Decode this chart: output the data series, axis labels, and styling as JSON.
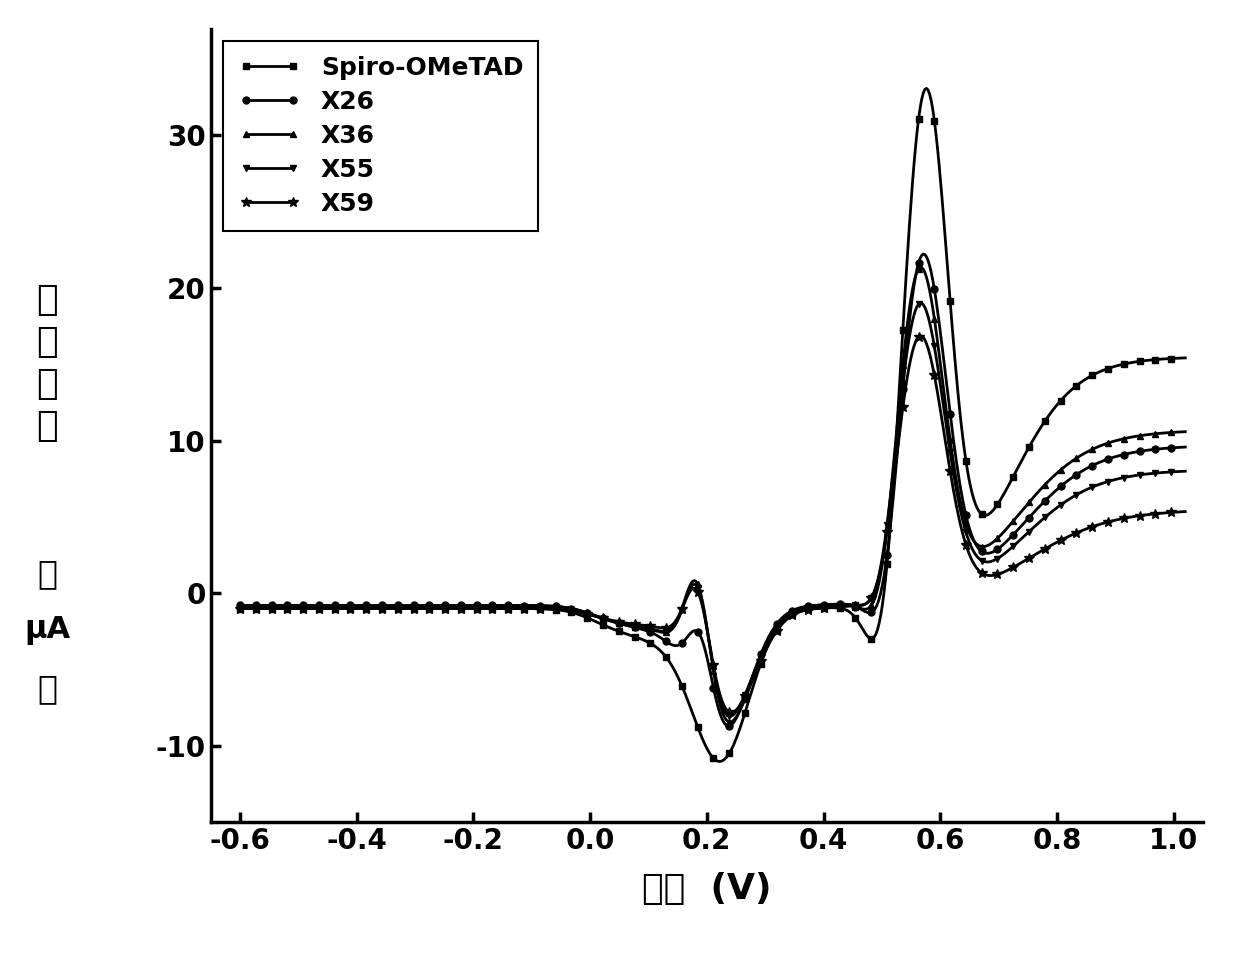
{
  "xlabel": "电位  (V)",
  "ylabel_line1": "电",
  "ylabel_line2": "流",
  "ylabel_line3": "密",
  "ylabel_line4": "度",
  "ylabel_line5": "（",
  "ylabel_line6": "μA",
  "ylabel_line7": "）",
  "xlim": [
    -0.65,
    1.05
  ],
  "ylim": [
    -15,
    37
  ],
  "xticks": [
    -0.6,
    -0.4,
    -0.2,
    0.0,
    0.2,
    0.4,
    0.6,
    0.8,
    1.0
  ],
  "yticks": [
    -10,
    0,
    10,
    20,
    30
  ],
  "series": [
    {
      "label": "Spiro-OMeTAD",
      "marker": "s",
      "lw": 2.0,
      "ms": 5
    },
    {
      "label": "X26",
      "marker": "o",
      "lw": 2.0,
      "ms": 5
    },
    {
      "label": "X36",
      "marker": "^",
      "lw": 2.0,
      "ms": 5
    },
    {
      "label": "X55",
      "marker": "v",
      "lw": 2.0,
      "ms": 5
    },
    {
      "label": "X59",
      "marker": "*",
      "lw": 2.0,
      "ms": 7
    }
  ]
}
